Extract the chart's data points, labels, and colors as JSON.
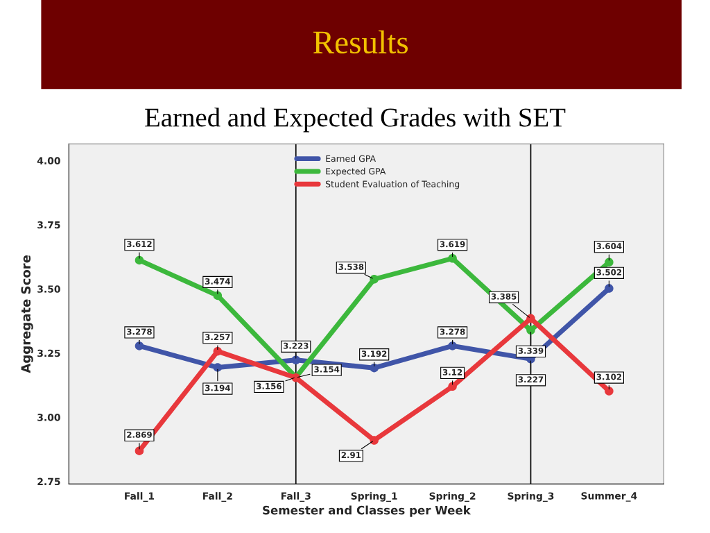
{
  "chart_data": {
    "type": "line",
    "title": "Results",
    "subtitle": "Earned and Expected Grades with SET",
    "xlabel": "Semester and Classes per Week",
    "ylabel": "Aggregate Score",
    "categories": [
      "Fall_1",
      "Fall_2",
      "Fall_3",
      "Spring_1",
      "Spring_2",
      "Spring_3",
      "Summer_4"
    ],
    "series": [
      {
        "name": "Earned GPA",
        "color": "#4055a8",
        "values": [
          3.278,
          3.194,
          3.223,
          3.192,
          3.278,
          3.227,
          3.502
        ]
      },
      {
        "name": "Expected GPA",
        "color": "#3cb83c",
        "values": [
          3.612,
          3.474,
          3.156,
          3.538,
          3.619,
          3.339,
          3.604
        ]
      },
      {
        "name": "Student Evaluation of Teaching",
        "color": "#e8383c",
        "values": [
          2.869,
          3.257,
          3.154,
          2.91,
          3.12,
          3.385,
          3.102
        ]
      }
    ],
    "ylim": [
      2.74,
      4.065
    ],
    "yticks": [
      {
        "value": 2.75,
        "label": "2.75"
      },
      {
        "value": 3.0,
        "label": "3.00"
      },
      {
        "value": 3.25,
        "label": "3.25"
      },
      {
        "value": 3.5,
        "label": "3.50"
      },
      {
        "value": 3.75,
        "label": "3.75"
      },
      {
        "value": 4.0,
        "label": "4.00"
      }
    ],
    "ref_lines": [
      {
        "axis": "x",
        "value": "Fall_3",
        "color": "#000000"
      },
      {
        "axis": "x",
        "value": "Spring_3",
        "color": "#000000"
      }
    ],
    "marker": "circle",
    "line_style": "solid",
    "grid": false,
    "legend": "top",
    "data_labels": true
  }
}
